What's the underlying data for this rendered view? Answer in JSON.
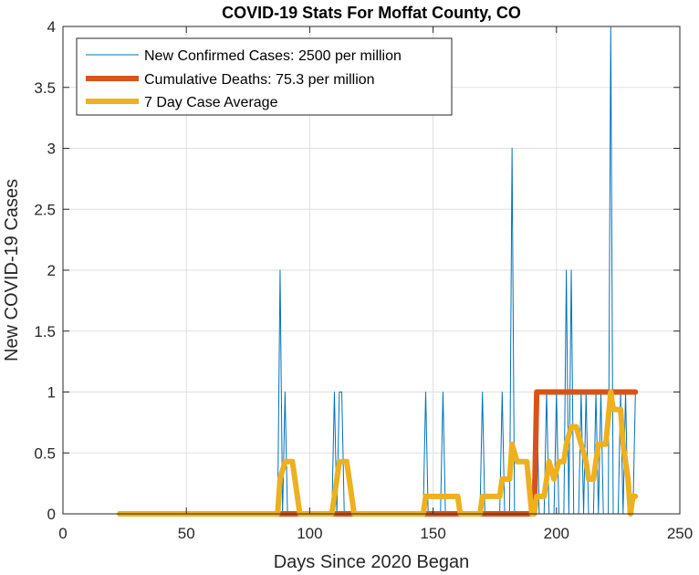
{
  "chart_data": {
    "type": "line",
    "title": "COVID-19 Stats For Moffat County, CO",
    "xlabel": "Days Since 2020 Began",
    "ylabel": "New COVID-19 Cases",
    "xlim": [
      0,
      250
    ],
    "ylim": [
      0,
      4
    ],
    "xticks": [
      0,
      50,
      100,
      150,
      200,
      250
    ],
    "yticks": [
      0,
      0.5,
      1,
      1.5,
      2,
      2.5,
      3,
      3.5,
      4
    ],
    "xtick_labels": [
      "0",
      "50",
      "100",
      "150",
      "200",
      "250"
    ],
    "ytick_labels": [
      "0",
      "0.5",
      "1",
      "1.5",
      "2",
      "2.5",
      "3",
      "3.5",
      "4"
    ],
    "grid": true,
    "legend_position": "top-left",
    "series": [
      {
        "name": "New Confirmed Cases: 2500 per million",
        "color": "#0072BD",
        "points": [
          [
            23,
            0
          ],
          [
            87,
            0
          ],
          [
            88,
            2
          ],
          [
            89,
            0
          ],
          [
            90,
            1
          ],
          [
            91,
            0
          ],
          [
            109,
            0
          ],
          [
            110,
            1
          ],
          [
            111,
            0
          ],
          [
            112,
            1
          ],
          [
            113,
            1
          ],
          [
            114,
            0
          ],
          [
            146,
            0
          ],
          [
            147,
            1
          ],
          [
            148,
            0
          ],
          [
            153,
            0
          ],
          [
            154,
            1
          ],
          [
            155,
            0
          ],
          [
            169,
            0
          ],
          [
            170,
            1
          ],
          [
            171,
            0
          ],
          [
            177,
            0
          ],
          [
            178,
            1
          ],
          [
            179,
            0
          ],
          [
            181,
            0
          ],
          [
            182,
            3
          ],
          [
            183,
            0
          ],
          [
            191,
            0
          ],
          [
            192,
            1
          ],
          [
            193,
            0
          ],
          [
            195,
            0
          ],
          [
            196,
            1
          ],
          [
            197,
            0
          ],
          [
            199,
            0
          ],
          [
            200,
            1
          ],
          [
            201,
            0
          ],
          [
            203,
            0
          ],
          [
            204,
            2
          ],
          [
            205,
            0
          ],
          [
            206,
            2
          ],
          [
            207,
            0
          ],
          [
            209,
            0
          ],
          [
            210,
            1
          ],
          [
            211,
            0
          ],
          [
            212,
            1
          ],
          [
            213,
            0
          ],
          [
            215,
            0
          ],
          [
            216,
            1
          ],
          [
            217,
            0
          ],
          [
            218,
            1
          ],
          [
            219,
            0
          ],
          [
            221,
            0
          ],
          [
            222,
            4
          ],
          [
            223,
            0
          ],
          [
            225,
            0
          ],
          [
            226,
            1
          ],
          [
            227,
            0
          ],
          [
            228,
            1
          ],
          [
            229,
            0
          ],
          [
            231,
            0
          ],
          [
            232,
            1
          ]
        ]
      },
      {
        "name": "Cumulative Deaths: 75.3 per million",
        "color": "#D95319",
        "points": [
          [
            23,
            0
          ],
          [
            191,
            0
          ],
          [
            192,
            1
          ],
          [
            232,
            1
          ]
        ]
      },
      {
        "name": "7 Day Case Average",
        "color": "#EDB120",
        "points": [
          [
            23,
            0
          ],
          [
            87,
            0
          ],
          [
            88,
            0.2857
          ],
          [
            90,
            0.4286
          ],
          [
            93,
            0.4286
          ],
          [
            95,
            0.1429
          ],
          [
            96,
            0
          ],
          [
            109,
            0
          ],
          [
            110,
            0.1429
          ],
          [
            112,
            0.4286
          ],
          [
            115,
            0.4286
          ],
          [
            117,
            0.1429
          ],
          [
            118,
            0
          ],
          [
            146,
            0
          ],
          [
            147,
            0.1429
          ],
          [
            160,
            0.1429
          ],
          [
            161,
            0
          ],
          [
            169,
            0
          ],
          [
            170,
            0.1429
          ],
          [
            177,
            0.1429
          ],
          [
            178,
            0.2857
          ],
          [
            181,
            0.2857
          ],
          [
            182,
            0.5714
          ],
          [
            184,
            0.4286
          ],
          [
            188,
            0.4286
          ],
          [
            190,
            0
          ],
          [
            191,
            0
          ],
          [
            192,
            0.1429
          ],
          [
            195,
            0.1429
          ],
          [
            196,
            0.2857
          ],
          [
            197,
            0.4286
          ],
          [
            199,
            0.2857
          ],
          [
            201,
            0.4286
          ],
          [
            203,
            0.4286
          ],
          [
            204,
            0.5714
          ],
          [
            206,
            0.7143
          ],
          [
            208,
            0.7143
          ],
          [
            210,
            0.5714
          ],
          [
            212,
            0.4286
          ],
          [
            213,
            0.2857
          ],
          [
            215,
            0.2857
          ],
          [
            217,
            0.5714
          ],
          [
            220,
            0.5714
          ],
          [
            222,
            1
          ],
          [
            223,
            0.8571
          ],
          [
            226,
            0.8571
          ],
          [
            227,
            0.5714
          ],
          [
            229,
            0.2857
          ],
          [
            230,
            0
          ],
          [
            231,
            0.1429
          ],
          [
            232,
            0.1429
          ]
        ]
      }
    ]
  }
}
